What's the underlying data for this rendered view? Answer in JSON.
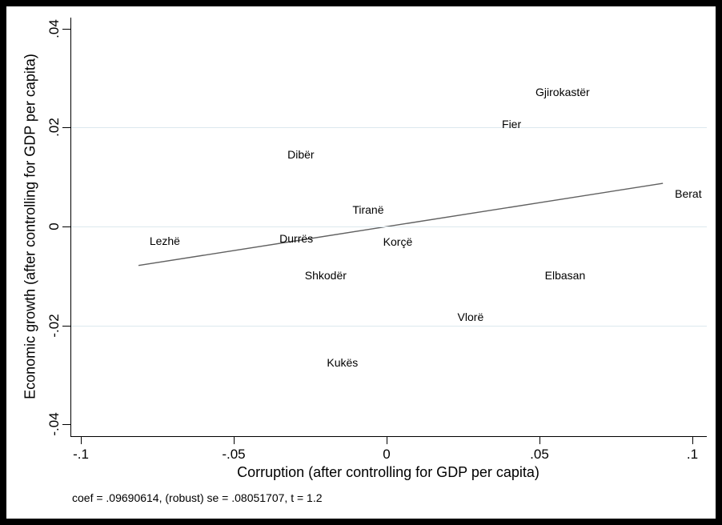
{
  "figure": {
    "background": "#ffffff",
    "frame_color": "#000000",
    "axis_color": "#000000",
    "text_color": "#000000"
  },
  "chart_data": {
    "type": "scatter",
    "title": "",
    "xlabel": "Corruption (after controlling for GDP per capita)",
    "ylabel": "Economic growth (after controlling for GDP per capita)",
    "note": "coef = .09690614, (robust) se = .08051707, t = 1.2",
    "xlim": [
      -0.1034,
      0.10445
    ],
    "ylim": [
      -0.042429,
      0.042267
    ],
    "grid_on": true,
    "grid_color": "#dce8ee",
    "gridline_values": [
      0.02,
      0,
      -0.02
    ],
    "x_ticks": [
      {
        "value": -0.1,
        "label": "-.1"
      },
      {
        "value": -0.05,
        "label": "-.05"
      },
      {
        "value": 0,
        "label": "0"
      },
      {
        "value": 0.05,
        "label": ".05"
      },
      {
        "value": 0.1,
        "label": ".1"
      }
    ],
    "y_ticks": [
      {
        "value": 0.04,
        "label": ".04"
      },
      {
        "value": 0.02,
        "label": ".02"
      },
      {
        "value": 0,
        "label": "0"
      },
      {
        "value": -0.02,
        "label": "-.02"
      },
      {
        "value": -0.04,
        "label": "-.04"
      }
    ],
    "fit_line": {
      "color": "#606060",
      "x1": -0.0814,
      "y1": -0.00789,
      "x2": 0.0901,
      "y2": 0.00873
    },
    "points": [
      {
        "label": "Gjirokastër",
        "x": 0.0573,
        "y": 0.0272
      },
      {
        "label": "Fier",
        "x": 0.0406,
        "y": 0.0207
      },
      {
        "label": "Dibër",
        "x": -0.0283,
        "y": 0.0146
      },
      {
        "label": "Berat",
        "x": 0.0984,
        "y": 0.0066
      },
      {
        "label": "Tiranë",
        "x": -0.0063,
        "y": 0.0034
      },
      {
        "label": "Lezhë",
        "x": -0.0728,
        "y": -0.0029
      },
      {
        "label": "Durrës",
        "x": -0.0298,
        "y": -0.0024
      },
      {
        "label": "Korçë",
        "x": 0.0034,
        "y": -0.0031
      },
      {
        "label": "Shkodër",
        "x": -0.0202,
        "y": -0.0099
      },
      {
        "label": "Elbasan",
        "x": 0.0581,
        "y": -0.0099
      },
      {
        "label": "Vlorë",
        "x": 0.0272,
        "y": -0.0183
      },
      {
        "label": "Kukës",
        "x": -0.0147,
        "y": -0.0275
      }
    ]
  }
}
